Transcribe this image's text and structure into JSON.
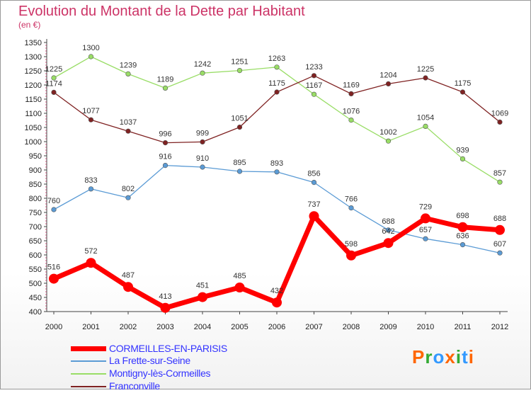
{
  "header": {
    "title": "Evolution du Montant de la Dette par Habitant",
    "subtitle": "(en €)"
  },
  "logo": {
    "text": "Proxiti",
    "colors": [
      "#ff6600",
      "#33aa33",
      "#3399ff",
      "#ff6600",
      "#33aa33",
      "#3399ff",
      "#ff6600"
    ]
  },
  "chart_data": {
    "type": "line",
    "title": "Evolution du Montant de la Dette par Habitant",
    "subtitle": "(en €)",
    "xlabel": "",
    "ylabel": "",
    "ylim": [
      400,
      1350
    ],
    "yticks": [
      400,
      450,
      500,
      550,
      600,
      650,
      700,
      750,
      800,
      850,
      900,
      950,
      1000,
      1050,
      1100,
      1150,
      1200,
      1250,
      1300,
      1350
    ],
    "grid": false,
    "legend_position": "bottom-left",
    "categories": [
      "2000",
      "2001",
      "2002",
      "2003",
      "2004",
      "2005",
      "2006",
      "2007",
      "2008",
      "2009",
      "2010",
      "2011",
      "2012"
    ],
    "series": [
      {
        "name": "CORMEILLES-EN-PARISIS",
        "color": "#ff0000",
        "emphasis": true,
        "values": [
          516,
          572,
          487,
          413,
          451,
          485,
          432,
          737,
          598,
          642,
          729,
          698,
          688
        ]
      },
      {
        "name": "La Frette-sur-Seine",
        "color": "#5b9bd5",
        "emphasis": false,
        "values": [
          760,
          833,
          802,
          916,
          910,
          895,
          893,
          856,
          766,
          688,
          657,
          636,
          607
        ]
      },
      {
        "name": "Montigny-lès-Cormeilles",
        "color": "#99dd66",
        "emphasis": false,
        "values": [
          1225,
          1300,
          1239,
          1189,
          1242,
          1251,
          1263,
          1167,
          1076,
          1002,
          1054,
          939,
          857
        ]
      },
      {
        "name": "Franconville",
        "color": "#7f2222",
        "emphasis": false,
        "values": [
          1174,
          1077,
          1037,
          996,
          999,
          1051,
          1175,
          1233,
          1169,
          1204,
          1225,
          1175,
          1069
        ]
      }
    ]
  }
}
